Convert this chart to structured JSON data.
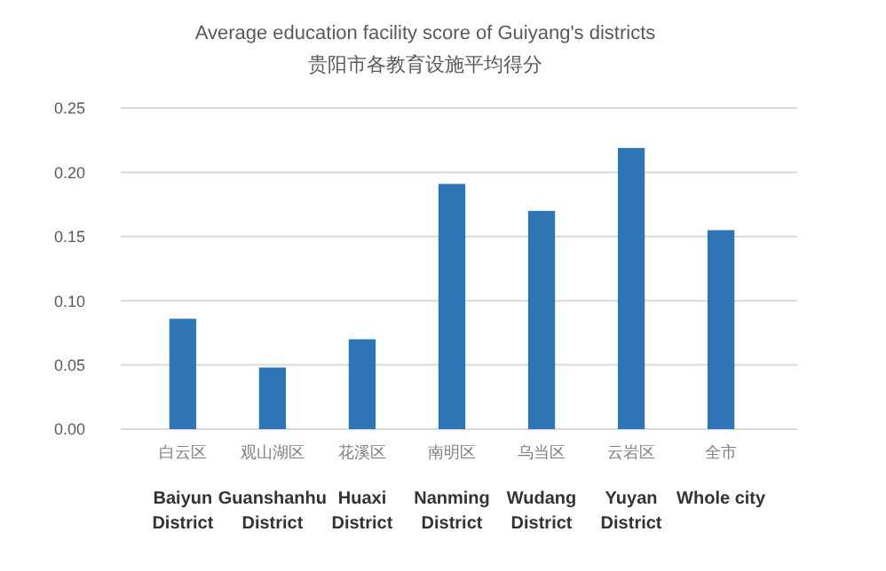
{
  "chart_data": {
    "type": "bar",
    "title": "Average education facility score of Guiyang's districts",
    "subtitle": "贵阳市各教育设施平均得分",
    "categories": [
      "白云区\nBaiyun\nDistrict",
      "观山湖区\nGuanshanhu\nDistrict",
      "花溪区\nHuaxi\nDistrict",
      "南明区\nNanming\nDistrict",
      "乌当区\nWudang\nDistrict",
      "云岩区\nYuyan\nDistrict",
      "全市\nWhole city"
    ],
    "values": [
      0.086,
      0.048,
      0.07,
      0.191,
      0.17,
      0.219,
      0.155
    ],
    "color": "#2e75b6",
    "ylim": [
      0,
      0.25
    ],
    "yticks": [
      {
        "value": 0,
        "label": "0.00"
      },
      {
        "value": 0.05,
        "label": "0.05"
      },
      {
        "value": 0.1,
        "label": "0.10"
      },
      {
        "value": 0.15,
        "label": "0.15"
      },
      {
        "value": 0.2,
        "label": "0.20"
      },
      {
        "value": 0.25,
        "label": "0.25"
      }
    ],
    "grid": "y"
  }
}
